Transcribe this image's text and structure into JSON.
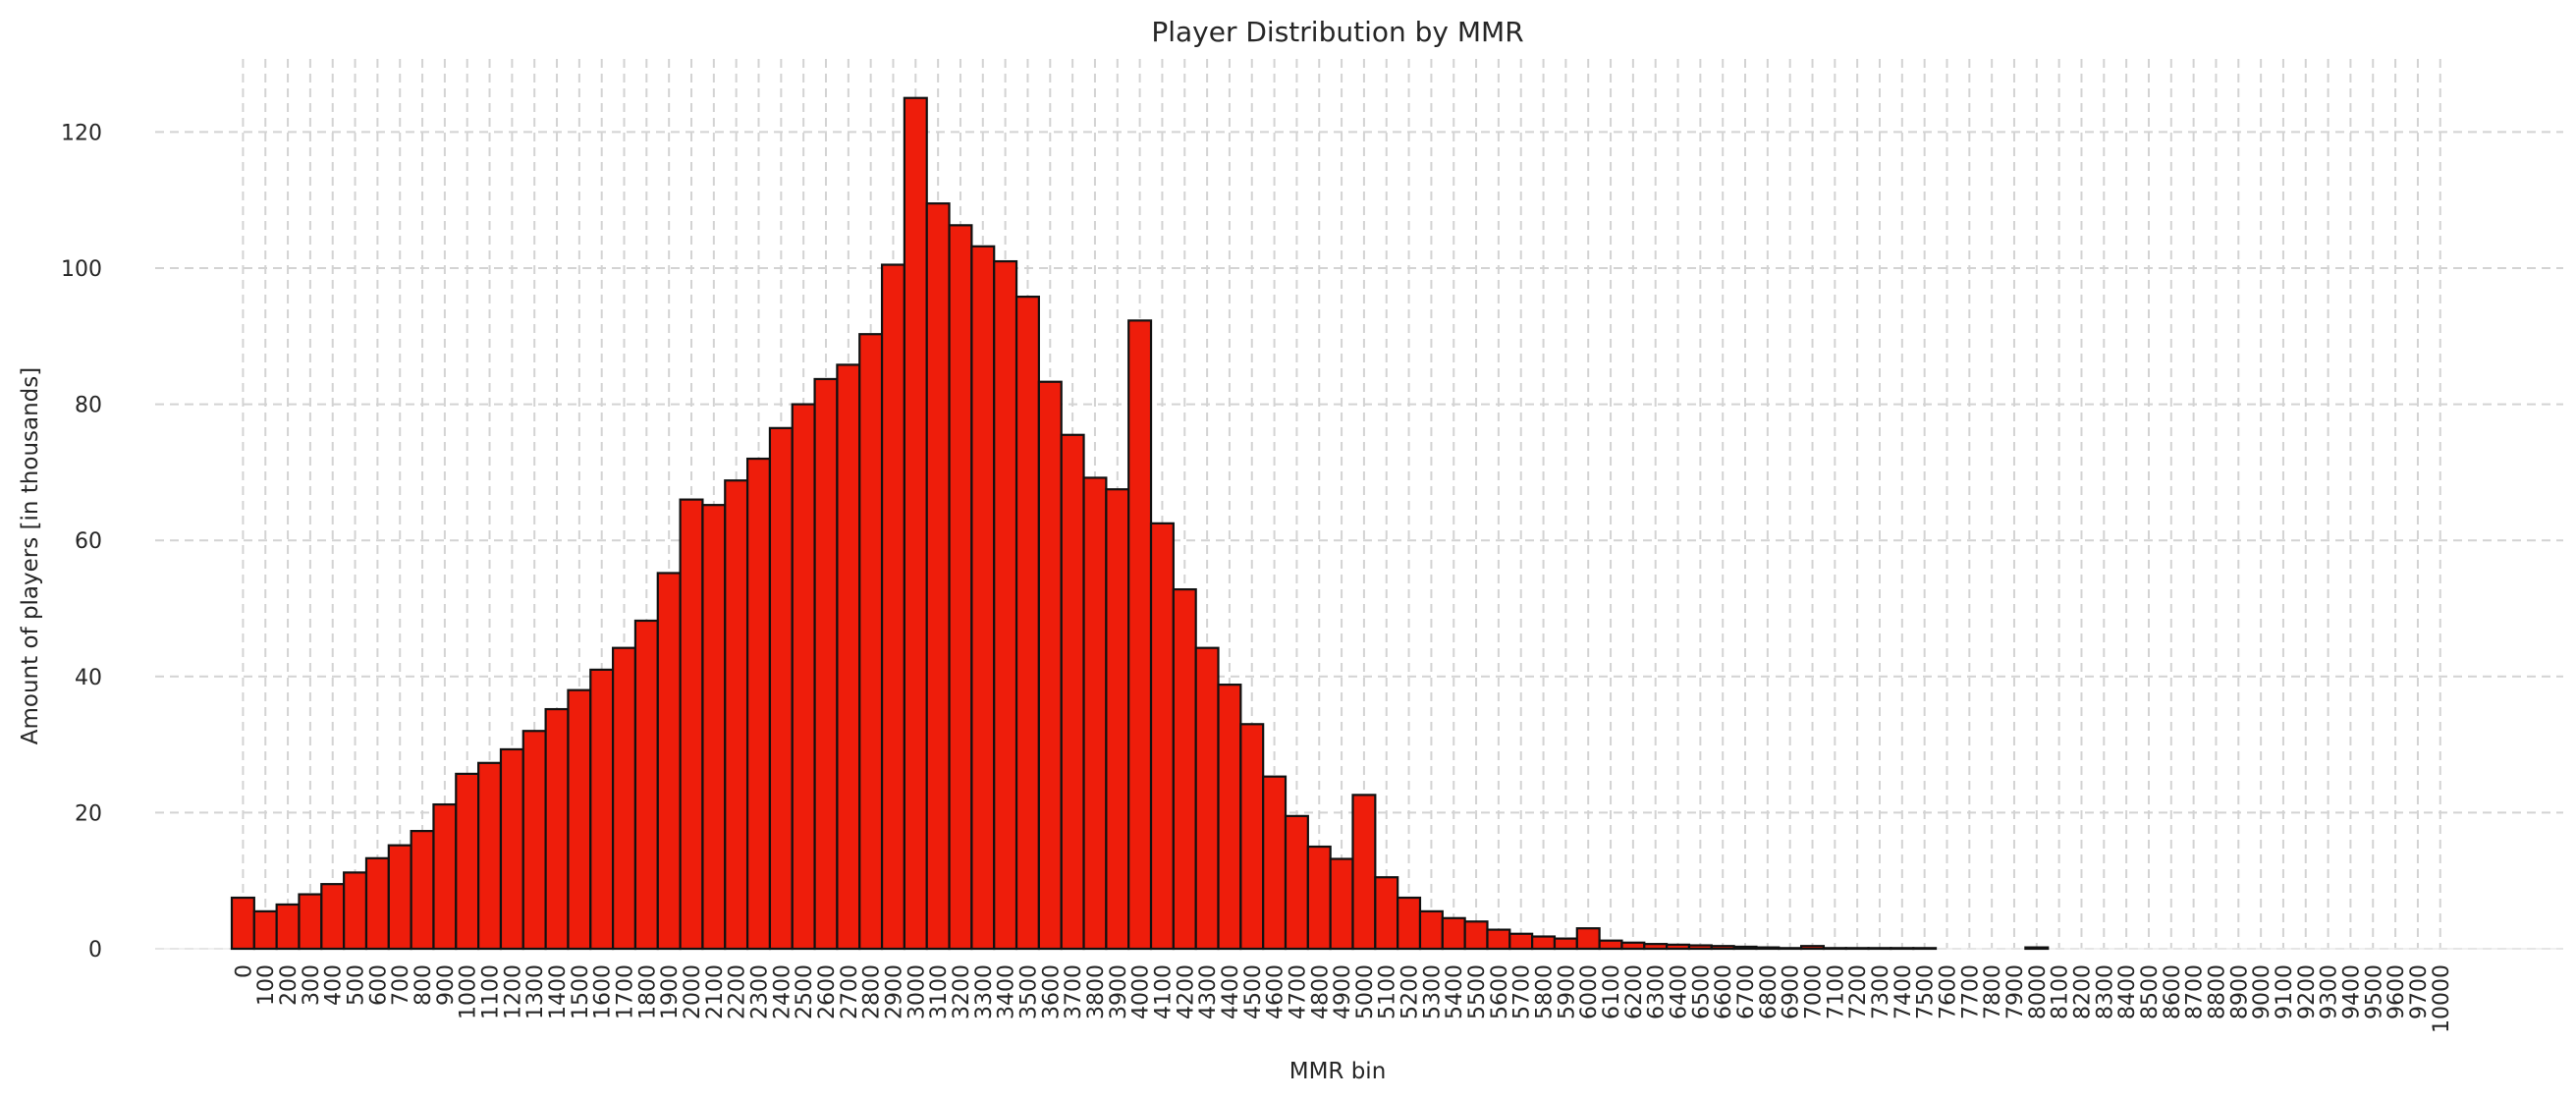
{
  "chart_data": {
    "type": "bar",
    "title": "Player Distribution by MMR",
    "xlabel": "MMR bin",
    "ylabel": "Amount of players [in thousands]",
    "ylim": [
      0,
      131
    ],
    "yticks": [
      0,
      20,
      40,
      60,
      80,
      100,
      120
    ],
    "grid": true,
    "bar_color": "#ee1d0b",
    "edge_color": "#111111",
    "categories": [
      "0",
      "100",
      "200",
      "300",
      "400",
      "500",
      "600",
      "700",
      "800",
      "900",
      "1000",
      "1100",
      "1200",
      "1300",
      "1400",
      "1500",
      "1600",
      "1700",
      "1800",
      "1900",
      "2000",
      "2100",
      "2200",
      "2300",
      "2400",
      "2500",
      "2600",
      "2700",
      "2800",
      "2900",
      "3000",
      "3100",
      "3200",
      "3300",
      "3400",
      "3500",
      "3600",
      "3700",
      "3800",
      "3900",
      "4000",
      "4100",
      "4200",
      "4300",
      "4400",
      "4500",
      "4600",
      "4700",
      "4800",
      "4900",
      "5000",
      "5100",
      "5200",
      "5300",
      "5400",
      "5500",
      "5600",
      "5700",
      "5800",
      "5900",
      "6000",
      "6100",
      "6200",
      "6300",
      "6400",
      "6500",
      "6600",
      "6700",
      "6800",
      "6900",
      "7000",
      "7100",
      "7200",
      "7300",
      "7400",
      "7500",
      "7600",
      "7700",
      "7800",
      "7900",
      "8000",
      "8100",
      "8200",
      "8300",
      "8400",
      "8500",
      "8600",
      "8700",
      "8800",
      "8900",
      "9000",
      "9100",
      "9200",
      "9300",
      "9400",
      "9500",
      "9600",
      "9700",
      "10000"
    ],
    "values": [
      7.5,
      5.5,
      6.5,
      8,
      9.5,
      11.2,
      13.3,
      15.2,
      17.3,
      21.2,
      25.7,
      27.3,
      29.3,
      32,
      35.2,
      38,
      41,
      44.2,
      48.2,
      55.2,
      66,
      65.2,
      68.8,
      72,
      76.5,
      80,
      83.7,
      85.8,
      90.3,
      100.5,
      125,
      109.5,
      106.3,
      103.2,
      101,
      95.8,
      83.3,
      75.5,
      69.2,
      67.5,
      92.3,
      62.5,
      52.8,
      44.2,
      38.8,
      33,
      25.3,
      19.5,
      15,
      13.2,
      22.6,
      10.5,
      7.5,
      5.5,
      4.5,
      4,
      2.8,
      2.2,
      1.8,
      1.5,
      3,
      1.2,
      0.9,
      0.7,
      0.6,
      0.5,
      0.4,
      0.3,
      0.2,
      0.1,
      0.4,
      0.1,
      0.1,
      0.1,
      0.1,
      0.1,
      0,
      0,
      0,
      0,
      0.2,
      0,
      0,
      0,
      0,
      0,
      0,
      0,
      0,
      0,
      0,
      0,
      0,
      0,
      0,
      0,
      0,
      0,
      0
    ]
  }
}
